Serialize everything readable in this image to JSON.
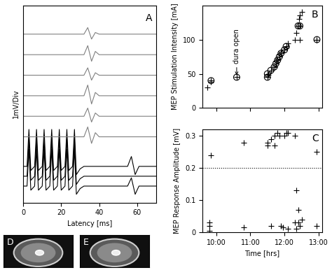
{
  "chart_data": [
    {
      "type": "line",
      "xlabel": "Latency [ms]",
      "ylabel": "1mV/Div",
      "annotations": [
        {
          "text": "A"
        }
      ],
      "xlim": [
        0,
        70
      ],
      "xticks": [
        0,
        20,
        40,
        60
      ],
      "ylim": [
        -2,
        22
      ],
      "tick_labels": "x",
      "grid": false,
      "x": [
        0,
        2,
        3,
        4,
        6,
        7,
        8,
        10,
        11,
        12,
        14,
        15,
        16,
        18,
        19,
        20,
        22,
        23,
        24,
        26,
        27,
        28,
        30,
        32,
        34,
        36,
        38,
        40,
        42,
        44,
        50,
        55,
        57,
        59,
        61,
        65,
        70
      ],
      "series": [
        {
          "color": "#000000",
          "values": [
            0,
            0,
            4.5,
            -0.5,
            0,
            4.5,
            -0.5,
            0,
            4.5,
            -0.5,
            0,
            4.5,
            -0.5,
            0,
            4.5,
            -0.5,
            0,
            4.5,
            -0.5,
            0,
            4.5,
            -1,
            -0.3,
            0,
            0,
            0,
            0,
            0,
            0,
            0,
            0,
            0,
            1,
            -1,
            0,
            0,
            0
          ]
        },
        {
          "color": "#000000",
          "values": [
            1.2,
            1.2,
            5.7,
            0.7,
            1.2,
            5.7,
            0.7,
            1.2,
            5.7,
            0.7,
            1.2,
            5.7,
            0.7,
            1.2,
            5.7,
            0.7,
            1.2,
            5.7,
            0.7,
            1.2,
            5.7,
            0.2,
            0.9,
            1.2,
            1.2,
            1.2,
            1.2,
            1.2,
            1.2,
            1.2,
            1.2,
            1.2,
            1.2,
            1.2,
            1.2,
            1.2,
            1.2
          ]
        },
        {
          "color": "#000000",
          "values": [
            2.4,
            2.4,
            6.9,
            1.9,
            2.4,
            6.9,
            1.9,
            2.4,
            6.9,
            1.9,
            2.4,
            6.9,
            1.9,
            2.4,
            6.9,
            1.9,
            2.4,
            6.9,
            1.9,
            2.4,
            6.9,
            1.4,
            2.1,
            2.4,
            2.4,
            2.4,
            2.4,
            2.4,
            2.4,
            2.4,
            2.4,
            2.4,
            3.6,
            1.4,
            2.4,
            2.4,
            2.4
          ]
        },
        {
          "color": "#808080",
          "values": [
            6,
            6,
            6,
            6,
            6,
            6,
            6,
            6,
            6,
            6,
            6,
            6,
            6,
            6,
            6,
            6,
            6,
            6,
            6,
            6,
            6,
            6,
            6,
            6,
            7.2,
            5.2,
            6.5,
            6,
            6,
            6,
            6,
            6,
            6,
            6,
            6,
            6,
            6
          ]
        },
        {
          "color": "#808080",
          "values": [
            8.5,
            8.5,
            8.5,
            8.5,
            8.5,
            8.5,
            8.5,
            8.5,
            8.5,
            8.5,
            8.5,
            8.5,
            8.5,
            8.5,
            8.5,
            8.5,
            8.5,
            8.5,
            8.5,
            8.5,
            8.5,
            8.5,
            8.5,
            8.5,
            9.5,
            7.8,
            8.9,
            8.5,
            8.5,
            8.5,
            8.5,
            8.5,
            8.5,
            8.5,
            8.5,
            8.5,
            8.5
          ]
        },
        {
          "color": "#808080",
          "values": [
            11,
            11,
            11,
            11,
            11,
            11,
            11,
            11,
            11,
            11,
            11,
            11,
            11,
            11,
            11,
            11,
            11,
            11,
            11,
            11,
            11,
            11,
            11,
            11,
            12.3,
            10,
            11.4,
            11,
            11,
            11,
            11,
            11,
            11,
            11,
            11,
            11,
            11
          ]
        },
        {
          "color": "#808080",
          "values": [
            13.5,
            13.5,
            13.5,
            13.5,
            13.5,
            13.5,
            13.5,
            13.5,
            13.5,
            13.5,
            13.5,
            13.5,
            13.5,
            13.5,
            13.5,
            13.5,
            13.5,
            13.5,
            13.5,
            13.5,
            13.5,
            13.5,
            13.5,
            13.5,
            14.4,
            12.9,
            13.8,
            13.5,
            13.5,
            13.5,
            13.5,
            13.5,
            13.5,
            13.5,
            13.5,
            13.5,
            13.5
          ]
        },
        {
          "color": "#808080",
          "values": [
            16,
            16,
            16,
            16,
            16,
            16,
            16,
            16,
            16,
            16,
            16,
            16,
            16,
            16,
            16,
            16,
            16,
            16,
            16,
            16,
            16,
            16,
            16,
            16,
            17.1,
            15.2,
            16.4,
            16,
            16,
            16,
            16,
            16,
            16,
            16,
            16,
            16,
            16
          ]
        },
        {
          "color": "#808080",
          "values": [
            18.5,
            18.5,
            18.5,
            18.5,
            18.5,
            18.5,
            18.5,
            18.5,
            18.5,
            18.5,
            18.5,
            18.5,
            18.5,
            18.5,
            18.5,
            18.5,
            18.5,
            18.5,
            18.5,
            18.5,
            18.5,
            18.5,
            18.5,
            18.5,
            19.3,
            17.9,
            18.7,
            18.5,
            18.5,
            18.5,
            18.5,
            18.5,
            18.5,
            18.5,
            18.5,
            18.5,
            18.5
          ]
        }
      ]
    },
    {
      "type": "scatter",
      "ylabel": "MEP Stimulation Intensity [mA]",
      "annotations": [
        {
          "text": "B"
        },
        {
          "text": "dura open",
          "x": 10.6,
          "y": 45
        }
      ],
      "xlim": [
        9.6,
        13.1
      ],
      "xticks": [
        10,
        11,
        12,
        13
      ],
      "ylim": [
        0,
        150
      ],
      "yticks": [
        0,
        50,
        100
      ],
      "tick_labels": "y",
      "grid": false,
      "series": [
        {
          "color": "#000000",
          "marker": "plus",
          "x": [
            9.75,
            9.85,
            11.5,
            11.52,
            11.6,
            11.7,
            11.75,
            11.8,
            11.85,
            11.9,
            12.0,
            12.05,
            12.1,
            12.3,
            12.35,
            12.4,
            12.42,
            12.45,
            12.5,
            12.45,
            12.95
          ],
          "values": [
            30,
            38,
            45,
            48,
            55,
            62,
            68,
            72,
            78,
            82,
            85,
            88,
            95,
            100,
            110,
            120,
            130,
            135,
            140,
            100,
            100
          ]
        },
        {
          "color": "#000000",
          "marker": "circle_plus",
          "x": [
            9.85,
            10.6,
            11.5,
            11.5,
            11.6,
            11.7,
            11.75,
            11.8,
            11.85,
            11.9,
            12.0,
            12.05,
            12.4,
            12.45,
            12.95
          ],
          "values": [
            40,
            45,
            45,
            50,
            55,
            60,
            65,
            70,
            75,
            80,
            85,
            90,
            120,
            120,
            100
          ]
        }
      ]
    },
    {
      "type": "scatter",
      "xlabel": "Time [hrs]",
      "ylabel": "MEP Response Amplitude [mV]",
      "annotations": [
        {
          "text": "C"
        }
      ],
      "threshold": 0.2,
      "xlim": [
        9.6,
        13.1
      ],
      "xticks": [
        {
          "value": 10,
          "label": "10:00"
        },
        {
          "value": 11,
          "label": "11:00"
        },
        {
          "value": 12,
          "label": "12:00"
        },
        {
          "value": 13,
          "label": "13:00"
        }
      ],
      "ylim": [
        0,
        0.32
      ],
      "yticks": [
        0,
        0.1,
        0.2,
        0.3
      ],
      "grid": false,
      "series": [
        {
          "color": "#000000",
          "marker": "plus",
          "x": [
            9.8,
            9.85,
            9.8,
            9.8,
            10.8,
            10.8,
            11.5,
            11.5,
            11.6,
            11.6,
            11.7,
            11.7,
            11.8,
            11.85,
            11.9,
            11.95,
            12.0,
            12.05,
            12.1,
            12.1,
            12.3,
            12.3,
            12.35,
            12.35,
            12.4,
            12.4,
            12.45,
            12.5,
            12.95,
            12.95
          ],
          "values": [
            0.02,
            0.24,
            0.005,
            0.03,
            0.015,
            0.28,
            0.27,
            0.28,
            0.29,
            0.02,
            0.3,
            0.27,
            0.31,
            0.3,
            0.02,
            0.015,
            0.3,
            0.31,
            0.31,
            0.01,
            0.3,
            0.03,
            0.13,
            0.01,
            0.07,
            0.03,
            0.02,
            0.04,
            0.25,
            0.02
          ]
        }
      ]
    },
    {
      "type": "image",
      "annotations": [
        {
          "text": "D"
        }
      ],
      "tick_labels": false
    },
    {
      "type": "image",
      "annotations": [
        {
          "text": "E"
        }
      ],
      "tick_labels": false
    }
  ]
}
